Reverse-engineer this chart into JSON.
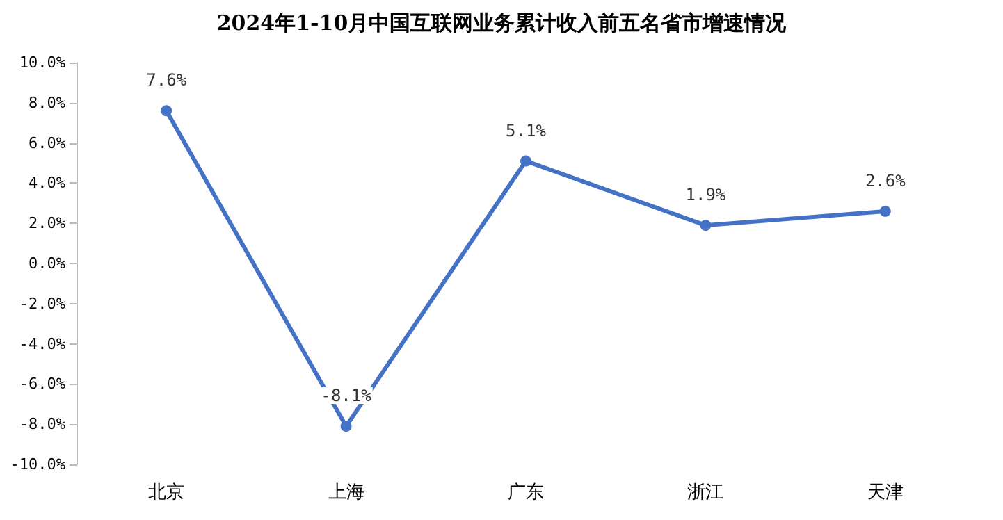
{
  "chart_data": {
    "type": "line",
    "title": "2024年1-10月中国互联网业务累计收入前五名省市增速情况",
    "categories": [
      "北京",
      "上海",
      "广东",
      "浙江",
      "天津"
    ],
    "series": [
      {
        "color": "#4472c4",
        "values": [
          7.6,
          -8.1,
          5.1,
          1.9,
          2.6
        ],
        "value_labels": [
          "7.6%",
          "-8.1%",
          "5.1%",
          "1.9%",
          "2.6%"
        ]
      }
    ],
    "ylim": [
      -10,
      10
    ],
    "yticks": [
      {
        "value": -10,
        "label": "-10.0%"
      },
      {
        "value": -8,
        "label": "-8.0%"
      },
      {
        "value": -6,
        "label": "-6.0%"
      },
      {
        "value": -4,
        "label": "-4.0%"
      },
      {
        "value": -2,
        "label": "-2.0%"
      },
      {
        "value": 0,
        "label": "0.0%"
      },
      {
        "value": 2,
        "label": "2.0%"
      },
      {
        "value": 4,
        "label": "4.0%"
      },
      {
        "value": 6,
        "label": "6.0%"
      },
      {
        "value": 8,
        "label": "8.0%"
      },
      {
        "value": 10,
        "label": "10.0%"
      }
    ],
    "grid": false,
    "marker": "circle",
    "line_style": "solid"
  }
}
